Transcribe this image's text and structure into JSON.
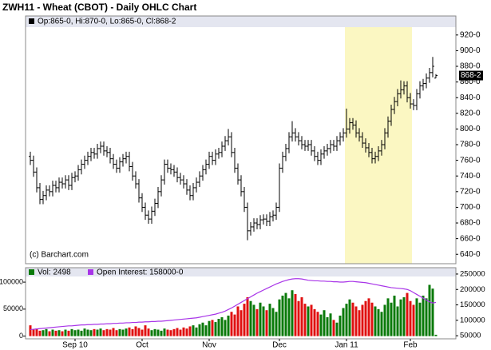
{
  "chart_data": {
    "type": "ohlc",
    "title": "ZWH11 - Wheat (CBOT) - Daily OHLC Chart",
    "ohlc_label": "Op:865-0, Hi:870-0, Lo:865-0, Cl:868-2",
    "source": "(c) Barchart.com",
    "categories": [
      null,
      null,
      null,
      null,
      null,
      null,
      null,
      null,
      null,
      null,
      null,
      null,
      null,
      null,
      "Sep 10",
      null,
      null,
      null,
      null,
      null,
      null,
      null,
      null,
      null,
      null,
      null,
      null,
      null,
      null,
      null,
      null,
      null,
      null,
      null,
      null,
      "Oct",
      null,
      null,
      null,
      null,
      null,
      null,
      null,
      null,
      null,
      null,
      null,
      null,
      null,
      null,
      null,
      null,
      null,
      null,
      null,
      null,
      "Nov",
      null,
      null,
      null,
      null,
      null,
      null,
      null,
      null,
      null,
      null,
      null,
      null,
      null,
      null,
      null,
      null,
      null,
      null,
      null,
      null,
      null,
      "Dec",
      null,
      null,
      null,
      null,
      null,
      null,
      null,
      null,
      null,
      null,
      null,
      null,
      null,
      null,
      null,
      null,
      null,
      null,
      null,
      null,
      "Jan 11",
      null,
      null,
      null,
      null,
      null,
      null,
      null,
      null,
      null,
      null,
      null,
      null,
      null,
      null,
      null,
      null,
      null,
      null,
      null,
      "Feb",
      null,
      null,
      null,
      null,
      null,
      null,
      null,
      null
    ],
    "open": [
      765,
      760,
      745,
      725,
      710,
      715,
      722,
      720,
      728,
      725,
      732,
      730,
      735,
      728,
      738,
      740,
      748,
      755,
      760,
      765,
      770,
      768,
      775,
      778,
      772,
      770,
      762,
      755,
      750,
      758,
      762,
      765,
      752,
      740,
      730,
      712,
      700,
      690,
      685,
      695,
      705,
      720,
      735,
      755,
      750,
      748,
      745,
      738,
      735,
      730,
      722,
      715,
      725,
      732,
      740,
      748,
      755,
      765,
      760,
      768,
      770,
      778,
      785,
      790,
      770,
      750,
      735,
      720,
      700,
      670,
      675,
      680,
      678,
      684,
      685,
      682,
      688,
      690,
      700,
      750,
      765,
      775,
      790,
      795,
      790,
      785,
      780,
      778,
      780,
      772,
      765,
      760,
      768,
      772,
      775,
      780,
      778,
      785,
      790,
      795,
      800,
      808,
      805,
      795,
      790,
      782,
      776,
      770,
      762,
      765,
      772,
      780,
      795,
      810,
      825,
      835,
      845,
      850,
      855,
      840,
      832,
      830,
      845,
      855,
      858,
      865,
      872,
      865
    ],
    "high": [
      771,
      766,
      751,
      731,
      721,
      728,
      728,
      734,
      734,
      738,
      738,
      741,
      741,
      744,
      746,
      754,
      761,
      766,
      771,
      776,
      776,
      781,
      784,
      784,
      778,
      776,
      768,
      761,
      764,
      768,
      771,
      771,
      758,
      746,
      736,
      718,
      706,
      696,
      701,
      711,
      726,
      741,
      761,
      761,
      756,
      754,
      751,
      744,
      741,
      736,
      728,
      731,
      738,
      746,
      754,
      761,
      771,
      771,
      774,
      776,
      784,
      791,
      800,
      796,
      776,
      756,
      741,
      726,
      706,
      681,
      686,
      686,
      690,
      691,
      691,
      694,
      696,
      706,
      756,
      771,
      781,
      796,
      810,
      801,
      796,
      791,
      786,
      786,
      786,
      778,
      771,
      774,
      778,
      781,
      786,
      786,
      791,
      796,
      801,
      826,
      814,
      814,
      811,
      801,
      796,
      788,
      782,
      776,
      771,
      778,
      786,
      801,
      816,
      831,
      841,
      851,
      862,
      861,
      861,
      846,
      838,
      851,
      861,
      864,
      871,
      878,
      892,
      870
    ],
    "low": [
      754,
      739,
      719,
      704,
      704,
      709,
      714,
      714,
      719,
      719,
      724,
      724,
      722,
      722,
      732,
      734,
      742,
      749,
      754,
      759,
      762,
      762,
      769,
      766,
      764,
      756,
      749,
      744,
      744,
      752,
      756,
      746,
      734,
      724,
      706,
      694,
      684,
      679,
      679,
      689,
      699,
      714,
      729,
      744,
      742,
      739,
      732,
      729,
      724,
      716,
      709,
      709,
      719,
      726,
      734,
      742,
      749,
      754,
      754,
      762,
      764,
      772,
      779,
      764,
      744,
      729,
      714,
      694,
      658,
      664,
      669,
      672,
      672,
      678,
      676,
      676,
      682,
      684,
      694,
      744,
      759,
      769,
      784,
      784,
      779,
      774,
      772,
      772,
      766,
      759,
      754,
      754,
      762,
      766,
      769,
      772,
      772,
      779,
      784,
      789,
      794,
      799,
      789,
      784,
      776,
      770,
      764,
      756,
      756,
      759,
      766,
      774,
      789,
      804,
      819,
      829,
      839,
      844,
      834,
      826,
      824,
      824,
      839,
      849,
      852,
      859,
      866,
      865
    ],
    "close": [
      760,
      745,
      725,
      710,
      715,
      722,
      720,
      728,
      725,
      732,
      730,
      735,
      728,
      738,
      740,
      748,
      755,
      760,
      765,
      770,
      768,
      775,
      778,
      772,
      770,
      762,
      755,
      750,
      758,
      762,
      765,
      752,
      740,
      730,
      712,
      700,
      690,
      685,
      695,
      705,
      720,
      735,
      755,
      750,
      748,
      745,
      738,
      735,
      730,
      722,
      715,
      725,
      732,
      740,
      748,
      755,
      765,
      760,
      768,
      770,
      778,
      785,
      790,
      770,
      750,
      735,
      720,
      700,
      670,
      675,
      680,
      678,
      684,
      685,
      682,
      688,
      690,
      700,
      750,
      765,
      775,
      790,
      795,
      790,
      785,
      780,
      778,
      780,
      772,
      765,
      760,
      768,
      772,
      775,
      780,
      778,
      785,
      790,
      795,
      800,
      808,
      805,
      795,
      790,
      782,
      776,
      770,
      762,
      765,
      772,
      780,
      795,
      810,
      825,
      835,
      845,
      850,
      855,
      840,
      832,
      830,
      845,
      855,
      858,
      865,
      872,
      880,
      868.25
    ],
    "last_label": "868-2",
    "color": "#000000",
    "ylim": [
      628,
      930
    ],
    "yticks": [
      {
        "value": 640,
        "label": "640-0"
      },
      {
        "value": 660,
        "label": "660-0"
      },
      {
        "value": 680,
        "label": "680-0"
      },
      {
        "value": 700,
        "label": "700-0"
      },
      {
        "value": 720,
        "label": "720-0"
      },
      {
        "value": 740,
        "label": "740-0"
      },
      {
        "value": 760,
        "label": "760-0"
      },
      {
        "value": 780,
        "label": "780-0"
      },
      {
        "value": 800,
        "label": "800-0"
      },
      {
        "value": 820,
        "label": "820-0"
      },
      {
        "value": 840,
        "label": "840-0"
      },
      {
        "value": 860,
        "label": "860-0"
      },
      {
        "value": 880,
        "label": "880-0"
      },
      {
        "value": 900,
        "label": "900-0"
      },
      {
        "value": 920,
        "label": "920-0"
      }
    ],
    "highlight": {
      "from": "Jan 11",
      "to": "Feb",
      "color": "#fbf7c2"
    },
    "volume": {
      "type": "bar",
      "label": "Vol: 2498",
      "up_color": "#0a7a0a",
      "down_color": "#e01010",
      "values": [
        20000,
        12000,
        14000,
        10000,
        11000,
        13000,
        9000,
        12000,
        10000,
        11000,
        9000,
        12000,
        10000,
        13000,
        11000,
        12000,
        10000,
        14000,
        12000,
        11000,
        13000,
        12000,
        14000,
        11000,
        13000,
        12000,
        15000,
        11000,
        13000,
        12000,
        14000,
        16000,
        13000,
        18000,
        15000,
        12000,
        20000,
        14000,
        11000,
        13000,
        12000,
        10000,
        14000,
        12000,
        11000,
        13000,
        15000,
        12000,
        16000,
        14000,
        18000,
        20000,
        16000,
        22000,
        25000,
        20000,
        28000,
        30000,
        26000,
        32000,
        35000,
        30000,
        38000,
        45000,
        40000,
        55000,
        48000,
        60000,
        72000,
        65000,
        58000,
        50000,
        62000,
        55000,
        48000,
        60000,
        52000,
        45000,
        68000,
        75000,
        80000,
        70000,
        85000,
        78000,
        65000,
        72000,
        60000,
        55000,
        58000,
        50000,
        45000,
        40000,
        48000,
        35000,
        42000,
        30000,
        25000,
        38000,
        52000,
        60000,
        68000,
        62000,
        55000,
        48000,
        58000,
        65000,
        70000,
        62000,
        55000,
        50000,
        45000,
        58000,
        70000,
        62000,
        75000,
        55000,
        68000,
        72000,
        80000,
        65000,
        58000,
        70000,
        62000,
        75000,
        70000,
        95000,
        88000,
        2498
      ],
      "ylim": [
        -5000,
        109000
      ],
      "yticks": [
        0,
        50000,
        100000
      ]
    },
    "open_interest": {
      "type": "line",
      "label": "Open Interest: 158000-0",
      "color": "#a834e8",
      "values": [
        70000,
        71000,
        72000,
        73000,
        74000,
        75000,
        76000,
        77000,
        78000,
        79000,
        80000,
        81000,
        82000,
        82000,
        83000,
        84000,
        85000,
        85000,
        86000,
        86000,
        87000,
        87000,
        88000,
        88000,
        89000,
        89000,
        90000,
        90000,
        91000,
        91000,
        92000,
        92000,
        93000,
        93000,
        94000,
        94000,
        95000,
        95000,
        96000,
        96000,
        97000,
        97000,
        98000,
        99000,
        100000,
        101000,
        102000,
        103000,
        104000,
        105000,
        106000,
        107000,
        108000,
        110000,
        112000,
        114000,
        116000,
        118000,
        120000,
        123000,
        126000,
        130000,
        135000,
        140000,
        146000,
        152000,
        158000,
        164000,
        170000,
        176000,
        182000,
        188000,
        193000,
        198000,
        203000,
        208000,
        213000,
        218000,
        222000,
        226000,
        229000,
        232000,
        234000,
        235000,
        235000,
        234000,
        232000,
        230000,
        229000,
        228000,
        228000,
        227000,
        227000,
        226000,
        226000,
        225000,
        225000,
        224000,
        224000,
        225000,
        226000,
        226000,
        225000,
        224000,
        223000,
        222000,
        220000,
        218000,
        216000,
        214000,
        212000,
        210000,
        208000,
        206000,
        205000,
        204000,
        203000,
        202000,
        200000,
        196000,
        190000,
        184000,
        178000,
        172000,
        166000,
        160000,
        156000,
        158000
      ],
      "y2lim": [
        40000,
        268000
      ],
      "y2ticks": [
        50000,
        100000,
        150000,
        200000,
        250000
      ]
    }
  }
}
